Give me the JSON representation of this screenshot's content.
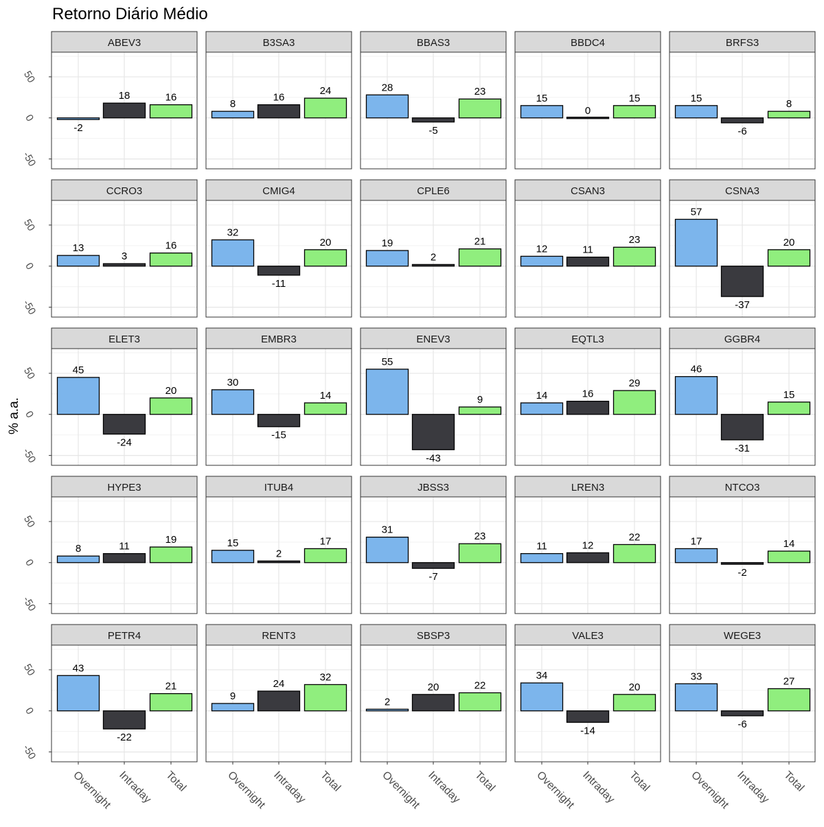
{
  "chart_data": {
    "type": "bar",
    "title": "Retorno Diário Médio",
    "xlabel": "",
    "ylabel": "% a.a.",
    "categories": [
      "Overnight",
      "Intraday",
      "Total"
    ],
    "colors": {
      "Overnight": "#7cb5ec",
      "Intraday": "#3a3a3f",
      "Total": "#90ee7e"
    },
    "ylim": [
      -62,
      80
    ],
    "yticks": [
      -50,
      0,
      50
    ],
    "grid": true,
    "legend": "none",
    "facets": [
      {
        "name": "ABEV3",
        "values": [
          -2,
          18,
          16
        ]
      },
      {
        "name": "B3SA3",
        "values": [
          8,
          16,
          24
        ]
      },
      {
        "name": "BBAS3",
        "values": [
          28,
          -5,
          23
        ]
      },
      {
        "name": "BBDC4",
        "values": [
          15,
          0,
          15
        ]
      },
      {
        "name": "BRFS3",
        "values": [
          15,
          -6,
          8
        ]
      },
      {
        "name": "CCRO3",
        "values": [
          13,
          3,
          16
        ]
      },
      {
        "name": "CMIG4",
        "values": [
          32,
          -11,
          20
        ]
      },
      {
        "name": "CPLE6",
        "values": [
          19,
          2,
          21
        ]
      },
      {
        "name": "CSAN3",
        "values": [
          12,
          11,
          23
        ]
      },
      {
        "name": "CSNA3",
        "values": [
          57,
          -37,
          20
        ]
      },
      {
        "name": "ELET3",
        "values": [
          45,
          -24,
          20
        ]
      },
      {
        "name": "EMBR3",
        "values": [
          30,
          -15,
          14
        ]
      },
      {
        "name": "ENEV3",
        "values": [
          55,
          -43,
          9
        ]
      },
      {
        "name": "EQTL3",
        "values": [
          14,
          16,
          29
        ]
      },
      {
        "name": "GGBR4",
        "values": [
          46,
          -31,
          15
        ]
      },
      {
        "name": "HYPE3",
        "values": [
          8,
          11,
          19
        ]
      },
      {
        "name": "ITUB4",
        "values": [
          15,
          2,
          17
        ]
      },
      {
        "name": "JBSS3",
        "values": [
          31,
          -7,
          23
        ]
      },
      {
        "name": "LREN3",
        "values": [
          11,
          12,
          22
        ]
      },
      {
        "name": "NTCO3",
        "values": [
          17,
          -2,
          14
        ]
      },
      {
        "name": "PETR4",
        "values": [
          43,
          -22,
          21
        ]
      },
      {
        "name": "RENT3",
        "values": [
          9,
          24,
          32
        ]
      },
      {
        "name": "SBSP3",
        "values": [
          2,
          20,
          22
        ]
      },
      {
        "name": "VALE3",
        "values": [
          34,
          -14,
          20
        ]
      },
      {
        "name": "WEGE3",
        "values": [
          33,
          -6,
          27
        ]
      }
    ]
  }
}
